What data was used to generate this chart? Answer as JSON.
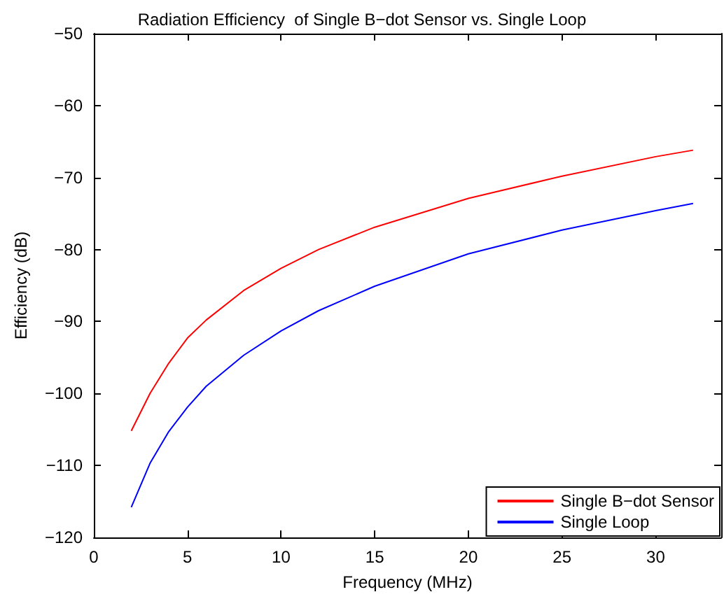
{
  "chart_data": {
    "type": "line",
    "title": "Radiation Efficiency  of Single B−dot Sensor vs. Single Loop",
    "xlabel": "Frequency (MHz)",
    "ylabel": "Efficiency (dB)",
    "x": [
      2,
      3,
      4,
      5,
      6,
      8,
      10,
      12,
      15,
      20,
      25,
      30,
      32
    ],
    "series": [
      {
        "name": "Single B−dot Sensor",
        "color": "#ff0000",
        "values": [
          -105.2,
          -100.0,
          -95.8,
          -92.3,
          -89.8,
          -85.7,
          -82.6,
          -80.0,
          -76.9,
          -72.9,
          -69.8,
          -67.1,
          -66.2
        ]
      },
      {
        "name": "Single Loop",
        "color": "#0000ff",
        "values": [
          -115.8,
          -109.7,
          -105.3,
          -101.9,
          -99.0,
          -94.7,
          -91.3,
          -88.5,
          -85.1,
          -80.6,
          -77.3,
          -74.6,
          -73.6
        ]
      }
    ],
    "xlim": [
      0,
      33.5
    ],
    "xticks": [
      0,
      5,
      10,
      15,
      20,
      25,
      30
    ],
    "ylim": [
      -120,
      -50
    ],
    "yticks": [
      -120,
      -110,
      -100,
      -90,
      -80,
      -70,
      -60,
      -50
    ],
    "grid": false,
    "legend": "bottom right",
    "marker": "none",
    "line_style": "solid"
  }
}
